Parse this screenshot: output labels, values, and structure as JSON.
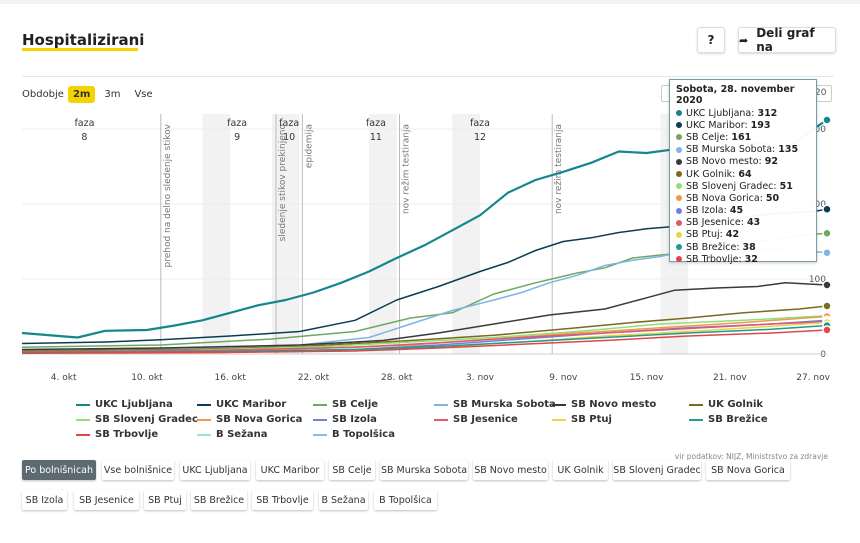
{
  "title": "Hospitalizirani",
  "help_label": "?",
  "share_label": "Deli graf na",
  "share_icon": "share-arrow-icon",
  "period": {
    "label": "Obdobje",
    "options": [
      "2m",
      "3m",
      "Vse"
    ],
    "selected": "2m",
    "end_value": "20"
  },
  "tooltip": {
    "title": "Sobota, 28. november 2020",
    "rows": [
      {
        "name": "UKC Ljubljana",
        "value": "312",
        "color": "#14868c"
      },
      {
        "name": "UKC Maribor",
        "value": "193",
        "color": "#0a3d55"
      },
      {
        "name": "SB Celje",
        "value": "161",
        "color": "#6fa864"
      },
      {
        "name": "SB Murska Sobota",
        "value": "135",
        "color": "#7fb5e3"
      },
      {
        "name": "SB Novo mesto",
        "value": "92",
        "color": "#3a3a3a"
      },
      {
        "name": "UK Golnik",
        "value": "64",
        "color": "#7a6a1f"
      },
      {
        "name": "SB Slovenj Gradec",
        "value": "51",
        "color": "#8fe07a"
      },
      {
        "name": "SB Nova Gorica",
        "value": "50",
        "color": "#f2994a"
      },
      {
        "name": "SB Izola",
        "value": "45",
        "color": "#6f7fe0"
      },
      {
        "name": "SB Jesenice",
        "value": "43",
        "color": "#e05a6d"
      },
      {
        "name": "SB Ptuj",
        "value": "42",
        "color": "#e8d44d"
      },
      {
        "name": "SB Brežice",
        "value": "38",
        "color": "#1f9b8f"
      },
      {
        "name": "SB Trbovlje",
        "value": "32",
        "color": "#e04848"
      }
    ]
  },
  "legend": [
    {
      "name": "UKC Ljubljana",
      "color": "#14868c"
    },
    {
      "name": "UKC Maribor",
      "color": "#0a3d55"
    },
    {
      "name": "SB Celje",
      "color": "#6fa864"
    },
    {
      "name": "SB Murska Sobota",
      "color": "#7fb5e3"
    },
    {
      "name": "SB Novo mesto",
      "color": "#3a3a3a"
    },
    {
      "name": "UK Golnik",
      "color": "#7a6a1f"
    },
    {
      "name": "SB Slovenj Gradec",
      "color": "#8fe07a"
    },
    {
      "name": "SB Nova Gorica",
      "color": "#f2994a"
    },
    {
      "name": "SB Izola",
      "color": "#6f7fe0"
    },
    {
      "name": "SB Jesenice",
      "color": "#e05a6d"
    },
    {
      "name": "SB Ptuj",
      "color": "#e8d44d"
    },
    {
      "name": "SB Brežice",
      "color": "#1f9b8f"
    },
    {
      "name": "SB Trbovlje",
      "color": "#e04848"
    },
    {
      "name": "B Sežana",
      "color": "#9de0dc"
    },
    {
      "name": "B Topolšica",
      "color": "#8fb8e8"
    }
  ],
  "source": "vir podatkov: NIJZ, Ministrstvo za zdravje",
  "filters": [
    "Po bolnišnicah",
    "Vse bolnišnice",
    "UKC Ljubljana",
    "UKC Maribor",
    "SB Celje",
    "SB Murska Sobota",
    "SB Novo mesto",
    "UK Golnik",
    "SB Slovenj Gradec",
    "SB Nova Gorica",
    "SB Izola",
    "SB Jesenice",
    "SB Ptuj",
    "SB Brežice",
    "SB Trbovlje",
    "B Sežana",
    "B Topolšica"
  ],
  "active_filter": "Po bolnišnicah",
  "chart_data": {
    "type": "line",
    "x_ticks": [
      "4. okt",
      "10. okt",
      "16. okt",
      "22. okt",
      "28. okt",
      "3. nov",
      "9. nov",
      "15. nov",
      "21. nov",
      "27. nov"
    ],
    "x_tick_days": [
      3,
      9,
      15,
      21,
      27,
      33,
      39,
      45,
      51,
      57
    ],
    "x_range_days": [
      0,
      58
    ],
    "y_ticks": [
      0,
      100,
      200,
      300
    ],
    "ylim": [
      0,
      320
    ],
    "grid": true,
    "phases": [
      {
        "label": "faza",
        "number": "8",
        "start": 3,
        "end": 6
      },
      {
        "label": "faza",
        "number": "9",
        "start": 14,
        "end": 17
      },
      {
        "label": "faza",
        "number": "10",
        "start": 18.5,
        "end": 20
      },
      {
        "label": "faza",
        "number": "11",
        "start": 24.5,
        "end": 26.5
      },
      {
        "label": "faza",
        "number": "12",
        "start": 31.5,
        "end": 34.5
      }
    ],
    "shaded_bands": [
      {
        "start": 13,
        "end": 15
      },
      {
        "start": 18,
        "end": 20
      },
      {
        "start": 25,
        "end": 27
      },
      {
        "start": 31,
        "end": 33
      },
      {
        "start": 46,
        "end": 48
      }
    ],
    "events": [
      {
        "day": 10,
        "text": "prehod na delno sledenje stikov"
      },
      {
        "day": 18.3,
        "text": "sledenje stikov prekinjeno"
      },
      {
        "day": 20.2,
        "text": "epidemija"
      },
      {
        "day": 27.2,
        "text": "nov režim testiranja"
      },
      {
        "day": 38.2,
        "text": "nov režim testiranja"
      }
    ],
    "series": [
      {
        "name": "UKC Ljubljana",
        "color": "#14868c",
        "points": [
          [
            0,
            28
          ],
          [
            4,
            22
          ],
          [
            6,
            31
          ],
          [
            9,
            32
          ],
          [
            11,
            38
          ],
          [
            13,
            45
          ],
          [
            15,
            55
          ],
          [
            17,
            65
          ],
          [
            19,
            72
          ],
          [
            21,
            82
          ],
          [
            23,
            95
          ],
          [
            25,
            110
          ],
          [
            27,
            128
          ],
          [
            29,
            145
          ],
          [
            31,
            165
          ],
          [
            33,
            185
          ],
          [
            35,
            215
          ],
          [
            37,
            232
          ],
          [
            39,
            243
          ],
          [
            41,
            255
          ],
          [
            43,
            270
          ],
          [
            45,
            268
          ],
          [
            47,
            273
          ],
          [
            49,
            278
          ],
          [
            51,
            268
          ],
          [
            53,
            282
          ],
          [
            55,
            272
          ],
          [
            57,
            300
          ],
          [
            58,
            312
          ]
        ]
      },
      {
        "name": "UKC Maribor",
        "color": "#0a3d55",
        "points": [
          [
            0,
            14
          ],
          [
            6,
            16
          ],
          [
            10,
            19
          ],
          [
            15,
            24
          ],
          [
            20,
            30
          ],
          [
            24,
            45
          ],
          [
            27,
            72
          ],
          [
            30,
            90
          ],
          [
            33,
            110
          ],
          [
            35,
            122
          ],
          [
            37,
            138
          ],
          [
            39,
            150
          ],
          [
            41,
            155
          ],
          [
            43,
            162
          ],
          [
            45,
            167
          ],
          [
            47,
            170
          ],
          [
            49,
            175
          ],
          [
            51,
            180
          ],
          [
            53,
            185
          ],
          [
            55,
            188
          ],
          [
            57,
            190
          ],
          [
            58,
            193
          ]
        ]
      },
      {
        "name": "SB Celje",
        "color": "#6fa864",
        "points": [
          [
            0,
            9
          ],
          [
            10,
            12
          ],
          [
            18,
            20
          ],
          [
            24,
            30
          ],
          [
            28,
            48
          ],
          [
            31,
            55
          ],
          [
            34,
            80
          ],
          [
            37,
            95
          ],
          [
            40,
            108
          ],
          [
            42,
            115
          ],
          [
            44,
            128
          ],
          [
            46,
            132
          ],
          [
            48,
            135
          ],
          [
            50,
            145
          ],
          [
            52,
            150
          ],
          [
            54,
            152
          ],
          [
            56,
            158
          ],
          [
            58,
            161
          ]
        ]
      },
      {
        "name": "SB Murska Sobota",
        "color": "#7fb5e3",
        "points": [
          [
            0,
            5
          ],
          [
            10,
            7
          ],
          [
            20,
            12
          ],
          [
            25,
            22
          ],
          [
            28,
            40
          ],
          [
            31,
            58
          ],
          [
            34,
            72
          ],
          [
            36,
            82
          ],
          [
            38,
            95
          ],
          [
            40,
            105
          ],
          [
            42,
            118
          ],
          [
            44,
            125
          ],
          [
            46,
            130
          ],
          [
            48,
            138
          ],
          [
            50,
            140
          ],
          [
            52,
            142
          ],
          [
            54,
            140
          ],
          [
            56,
            138
          ],
          [
            58,
            135
          ]
        ]
      },
      {
        "name": "SB Novo mesto",
        "color": "#3a3a3a",
        "points": [
          [
            0,
            6
          ],
          [
            10,
            8
          ],
          [
            20,
            12
          ],
          [
            26,
            18
          ],
          [
            30,
            28
          ],
          [
            34,
            40
          ],
          [
            38,
            52
          ],
          [
            42,
            60
          ],
          [
            45,
            75
          ],
          [
            47,
            85
          ],
          [
            50,
            88
          ],
          [
            53,
            90
          ],
          [
            55,
            95
          ],
          [
            58,
            92
          ]
        ]
      },
      {
        "name": "UK Golnik",
        "color": "#7a6a1f",
        "points": [
          [
            0,
            4
          ],
          [
            12,
            6
          ],
          [
            20,
            10
          ],
          [
            28,
            18
          ],
          [
            34,
            25
          ],
          [
            40,
            35
          ],
          [
            44,
            42
          ],
          [
            48,
            48
          ],
          [
            52,
            55
          ],
          [
            56,
            60
          ],
          [
            58,
            64
          ]
        ]
      },
      {
        "name": "SB Slovenj Gradec",
        "color": "#8fe07a",
        "points": [
          [
            0,
            3
          ],
          [
            12,
            5
          ],
          [
            22,
            10
          ],
          [
            28,
            16
          ],
          [
            34,
            22
          ],
          [
            40,
            30
          ],
          [
            46,
            40
          ],
          [
            52,
            45
          ],
          [
            58,
            51
          ]
        ]
      },
      {
        "name": "SB Nova Gorica",
        "color": "#f2994a",
        "points": [
          [
            0,
            2
          ],
          [
            12,
            4
          ],
          [
            22,
            8
          ],
          [
            28,
            12
          ],
          [
            34,
            20
          ],
          [
            40,
            28
          ],
          [
            46,
            35
          ],
          [
            52,
            42
          ],
          [
            58,
            50
          ]
        ]
      },
      {
        "name": "SB Izola",
        "color": "#6f7fe0",
        "points": [
          [
            0,
            2
          ],
          [
            14,
            3
          ],
          [
            24,
            6
          ],
          [
            30,
            12
          ],
          [
            36,
            20
          ],
          [
            42,
            28
          ],
          [
            48,
            35
          ],
          [
            54,
            40
          ],
          [
            58,
            45
          ]
        ]
      },
      {
        "name": "SB Jesenice",
        "color": "#e05a6d",
        "points": [
          [
            0,
            3
          ],
          [
            14,
            5
          ],
          [
            24,
            9
          ],
          [
            30,
            15
          ],
          [
            36,
            22
          ],
          [
            42,
            28
          ],
          [
            48,
            34
          ],
          [
            54,
            40
          ],
          [
            58,
            43
          ]
        ]
      },
      {
        "name": "SB Ptuj",
        "color": "#e8d44d",
        "points": [
          [
            0,
            1
          ],
          [
            14,
            2
          ],
          [
            24,
            5
          ],
          [
            30,
            9
          ],
          [
            36,
            16
          ],
          [
            42,
            24
          ],
          [
            48,
            30
          ],
          [
            54,
            37
          ],
          [
            58,
            42
          ]
        ]
      },
      {
        "name": "SB Brežice",
        "color": "#1f9b8f",
        "points": [
          [
            0,
            2
          ],
          [
            14,
            3
          ],
          [
            24,
            6
          ],
          [
            30,
            10
          ],
          [
            36,
            16
          ],
          [
            42,
            22
          ],
          [
            48,
            28
          ],
          [
            54,
            33
          ],
          [
            58,
            38
          ]
        ]
      },
      {
        "name": "SB Trbovlje",
        "color": "#e04848",
        "points": [
          [
            0,
            1
          ],
          [
            14,
            2
          ],
          [
            24,
            4
          ],
          [
            30,
            8
          ],
          [
            36,
            13
          ],
          [
            42,
            18
          ],
          [
            48,
            24
          ],
          [
            54,
            28
          ],
          [
            58,
            32
          ]
        ]
      }
    ]
  }
}
